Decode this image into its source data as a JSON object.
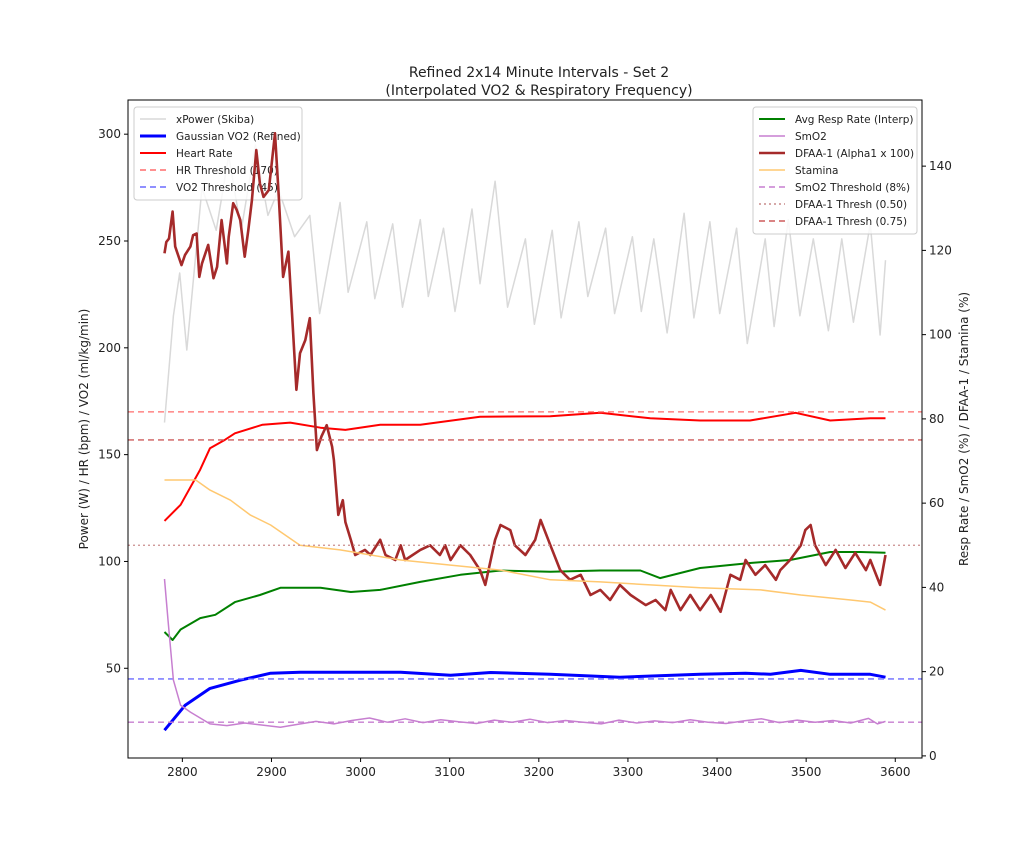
{
  "chart_data": {
    "type": "line",
    "title": [
      "Refined 2x14 Minute Intervals - Set 2",
      "(Interpolated VO2 & Respiratory Frequency)"
    ],
    "xlabel": "",
    "ylabel_left": "Power (W) / HR (bpm) / VO2 (ml/kg/min)",
    "ylabel_right": "Resp Rate / SmO2 (%) / DFAA-1 / Stamina (%)",
    "xlim": [
      2739,
      3630
    ],
    "ylim_left": [
      8,
      316
    ],
    "ylim_right": [
      -0.5,
      155.7
    ],
    "xticks": [
      2800,
      2900,
      3000,
      3100,
      3200,
      3300,
      3400,
      3500,
      3600
    ],
    "yticks_left": [
      50,
      100,
      150,
      200,
      250,
      300
    ],
    "yticks_right": [
      0,
      20,
      40,
      60,
      80,
      100,
      120,
      140
    ],
    "grid": false,
    "legend_left": {
      "placement": "upper-left",
      "entries": [
        "xPower (Skiba)",
        "Gaussian VO2 (Refined)",
        "Heart Rate",
        "HR Threshold (170)",
        "VO2 Threshold (45)"
      ]
    },
    "legend_right": {
      "placement": "upper-right",
      "entries": [
        "Avg Resp Rate (Interp)",
        "SmO2",
        "DFAA-1 (Alpha1 x 100)",
        "Stamina",
        "SmO2 Threshold (8%)",
        "DFAA-1 Thresh (0.50)",
        "DFAA-1 Thresh (0.75)"
      ]
    },
    "series": [
      {
        "name": "xPower (Skiba)",
        "axis": "left",
        "color": "#d9d9d9",
        "style": "solid",
        "x": [
          2780,
          2790,
          2797,
          2805,
          2822,
          2838,
          2852,
          2866,
          2882,
          2896,
          2908,
          2926,
          2943,
          2954,
          2977,
          2986,
          3007,
          3016,
          3036,
          3047,
          3067,
          3076,
          3093,
          3106,
          3125,
          3134,
          3151,
          3165,
          3185,
          3195,
          3215,
          3225,
          3245,
          3255,
          3275,
          3285,
          3305,
          3315,
          3329,
          3344,
          3363,
          3374,
          3392,
          3403,
          3422,
          3434,
          3454,
          3464,
          3480,
          3493,
          3508,
          3525,
          3540,
          3553,
          3572,
          3583,
          3589
        ],
        "y": [
          165,
          215,
          235,
          199,
          275,
          255,
          290,
          255,
          295,
          262,
          274,
          252,
          262,
          216,
          268,
          226,
          259,
          223,
          258,
          219,
          260,
          224,
          256,
          217,
          265,
          230,
          278,
          219,
          251,
          211,
          255,
          214,
          259,
          224,
          256,
          216,
          252,
          217,
          251,
          207,
          263,
          214,
          259,
          216,
          256,
          202,
          251,
          210,
          260,
          215,
          251,
          208,
          251,
          212,
          258,
          206,
          241
        ]
      },
      {
        "name": "Gaussian VO2 (Refined)",
        "axis": "left",
        "color": "#0000ff",
        "style": "solid",
        "x": [
          2780,
          2803,
          2831,
          2865,
          2899,
          2932,
          3045,
          3101,
          3146,
          3213,
          3291,
          3381,
          3432,
          3460,
          3494,
          3527,
          3572,
          3589
        ],
        "y": [
          21,
          32.6,
          40.6,
          44.4,
          47.7,
          48.1,
          48.1,
          46.7,
          48,
          47.2,
          45.8,
          47.2,
          47.7,
          47.2,
          49,
          47.2,
          47.2,
          45.8
        ]
      },
      {
        "name": "Heart Rate",
        "axis": "left",
        "color": "#ff0000",
        "style": "solid",
        "x": [
          2780,
          2798,
          2820,
          2831,
          2848,
          2859,
          2890,
          2921,
          2955,
          2983,
          3022,
          3067,
          3134,
          3213,
          3269,
          3325,
          3381,
          3437,
          3488,
          3527,
          3572,
          3589
        ],
        "y": [
          119,
          126.5,
          143,
          153,
          157,
          160,
          164,
          165,
          162.6,
          161.6,
          164,
          164,
          167.7,
          168,
          169.6,
          167,
          166,
          166,
          169.6,
          166,
          167,
          167
        ]
      },
      {
        "name": "HR Threshold (170)",
        "axis": "left",
        "color": "#ff6b6b",
        "style": "dashed",
        "constant": 170
      },
      {
        "name": "VO2 Threshold (45)",
        "axis": "left",
        "color": "#6b6bff",
        "style": "dashed",
        "constant": 45
      },
      {
        "name": "Avg Resp Rate (Interp)",
        "axis": "right",
        "color": "#008000",
        "style": "solid",
        "x": [
          2780,
          2789,
          2798,
          2820,
          2837,
          2859,
          2887,
          2910,
          2955,
          2989,
          3022,
          3067,
          3112,
          3157,
          3213,
          3269,
          3314,
          3336,
          3381,
          3437,
          3482,
          3527,
          3561,
          3589
        ],
        "y": [
          29.4,
          27.5,
          30,
          32.7,
          33.5,
          36.5,
          38.2,
          39.9,
          39.9,
          38.9,
          39.4,
          41.3,
          43,
          44,
          43.7,
          44,
          44,
          42.2,
          44.6,
          45.8,
          46.5,
          48.4,
          48.4,
          48.2
        ]
      },
      {
        "name": "SmO2",
        "axis": "right",
        "color": "#c77fd0",
        "style": "solid",
        "x": [
          2780,
          2784,
          2790,
          2798,
          2809,
          2820,
          2831,
          2850,
          2870,
          2890,
          2910,
          2930,
          2950,
          2970,
          2990,
          3010,
          3030,
          3050,
          3070,
          3090,
          3110,
          3130,
          3150,
          3170,
          3190,
          3210,
          3230,
          3250,
          3270,
          3290,
          3310,
          3330,
          3350,
          3370,
          3390,
          3410,
          3430,
          3450,
          3470,
          3490,
          3510,
          3530,
          3550,
          3570,
          3580,
          3589
        ],
        "y": [
          42,
          32,
          18,
          12,
          10.4,
          9,
          7.6,
          7.2,
          7.8,
          7.3,
          6.8,
          7.5,
          8.2,
          7.6,
          8.4,
          9.0,
          8.0,
          8.8,
          7.9,
          8.6,
          8.1,
          7.7,
          8.5,
          8.0,
          8.7,
          7.9,
          8.4,
          8.0,
          7.6,
          8.5,
          7.8,
          8.3,
          7.9,
          8.6,
          8.0,
          7.7,
          8.3,
          8.8,
          7.9,
          8.5,
          8.0,
          8.4,
          7.8,
          8.9,
          7.6,
          8.2
        ]
      },
      {
        "name": "DFAA-1 (Alpha1 x 100)",
        "axis": "right",
        "color": "#a52a2a",
        "style": "solid",
        "x": [
          2780,
          2782,
          2785,
          2789,
          2792,
          2799,
          2803,
          2809,
          2812,
          2816,
          2819,
          2822,
          2829,
          2835,
          2839,
          2844,
          2850,
          2852,
          2857,
          2861,
          2865,
          2870,
          2874,
          2878,
          2883,
          2887,
          2891,
          2897,
          2904,
          2908,
          2913,
          2919,
          2923,
          2928,
          2932,
          2938,
          2943,
          2947,
          2951,
          2956,
          2962,
          2968,
          2970,
          2975,
          2980,
          2983,
          2989,
          2994,
          3005,
          3011,
          3022,
          3028,
          3039,
          3045,
          3050,
          3067,
          3078,
          3089,
          3095,
          3101,
          3112,
          3123,
          3134,
          3140,
          3151,
          3157,
          3168,
          3173,
          3185,
          3196,
          3202,
          3213,
          3224,
          3235,
          3247,
          3258,
          3269,
          3280,
          3291,
          3303,
          3320,
          3331,
          3342,
          3348,
          3359,
          3370,
          3381,
          3393,
          3404,
          3415,
          3426,
          3432,
          3443,
          3454,
          3466,
          3471,
          3482,
          3494,
          3499,
          3505,
          3510,
          3522,
          3533,
          3544,
          3555,
          3567,
          3572,
          3583,
          3589
        ],
        "y": [
          119.3,
          122,
          122.8,
          129.2,
          120.9,
          116.5,
          118.9,
          120.9,
          123.6,
          124,
          113.7,
          116.9,
          121.3,
          113.4,
          116.1,
          127.2,
          116.9,
          123.2,
          131.2,
          129.6,
          127.2,
          118.5,
          124.8,
          131.9,
          143.8,
          135.9,
          132.7,
          134.3,
          147.8,
          133.5,
          113.7,
          119.7,
          105.1,
          86.9,
          95.6,
          98.7,
          103.9,
          86.1,
          72.6,
          75.8,
          78.5,
          73.4,
          70.2,
          57.2,
          60.7,
          55.5,
          51.3,
          47.7,
          48.9,
          47.7,
          51.3,
          47.7,
          46.5,
          50,
          46.5,
          48.9,
          50,
          47.7,
          50,
          46.5,
          50,
          47.7,
          44.1,
          40.6,
          51.3,
          54.8,
          53.6,
          50,
          47.7,
          51.3,
          56,
          50,
          44.1,
          41.8,
          43,
          38.2,
          39.4,
          37,
          40.6,
          38.2,
          35.8,
          37,
          34.6,
          39.4,
          34.6,
          38.2,
          34.6,
          38.2,
          34.2,
          43,
          41.8,
          46.5,
          43,
          45.3,
          41.8,
          44.1,
          46.5,
          50,
          53.6,
          54.8,
          50,
          45.3,
          48.9,
          44.6,
          48.2,
          44.1,
          46.5,
          40.6,
          47.7
        ]
      },
      {
        "name": "Stamina",
        "axis": "right",
        "color": "#ffc870",
        "style": "solid",
        "x": [
          2780,
          2815,
          2831,
          2854,
          2876,
          2899,
          2932,
          2977,
          3045,
          3101,
          3157,
          3213,
          3269,
          3325,
          3381,
          3449,
          3494,
          3550,
          3572,
          3589
        ],
        "y": [
          65.5,
          65.5,
          63.1,
          60.7,
          57.2,
          54.8,
          50,
          48.9,
          46.5,
          45.3,
          44.1,
          41.8,
          41.3,
          40.6,
          39.9,
          39.4,
          38.2,
          37,
          36.5,
          34.6
        ]
      },
      {
        "name": "SmO2 Threshold (8%)",
        "axis": "right",
        "color": "#c77fd0",
        "style": "dashed",
        "constant": 8
      },
      {
        "name": "DFAA-1 Thresh (0.50)",
        "axis": "right",
        "color": "#c98c8c",
        "style": "dotted",
        "constant": 50
      },
      {
        "name": "DFAA-1 Thresh (0.75)",
        "axis": "right",
        "color": "#cd5c5c",
        "style": "dashed",
        "constant": 75
      }
    ]
  }
}
